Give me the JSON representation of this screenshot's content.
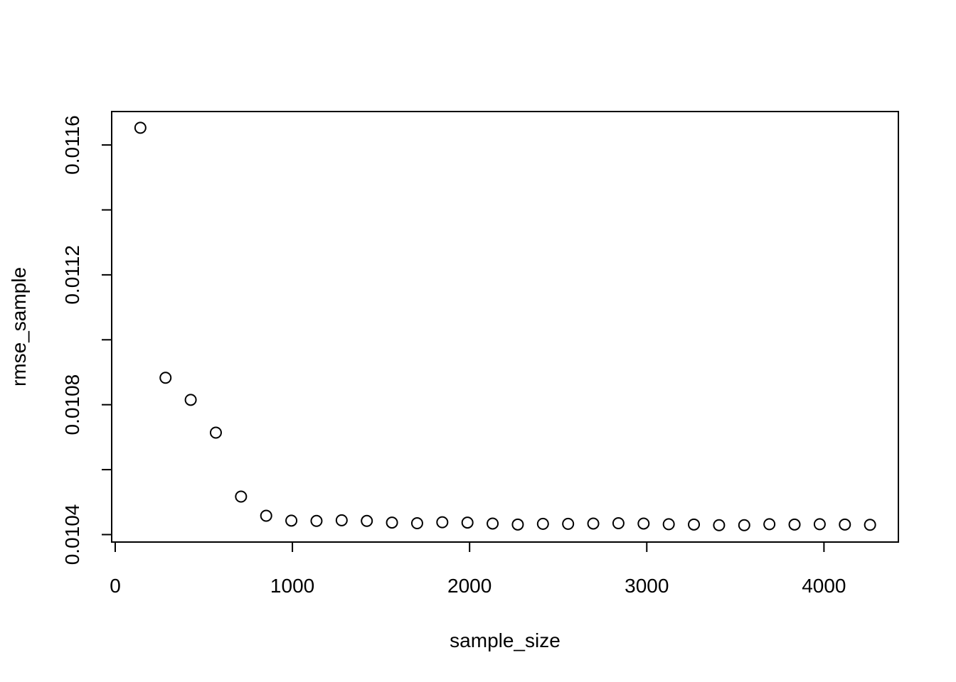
{
  "chart_data": {
    "type": "scatter",
    "title": "",
    "xlabel": "sample_size",
    "ylabel": "rmse_sample",
    "xlim": [
      -20,
      4420
    ],
    "ylim": [
      0.010377,
      0.011703
    ],
    "x_ticks": [
      0,
      1000,
      2000,
      3000,
      4000
    ],
    "x_tick_labels": [
      "0",
      "1000",
      "2000",
      "3000",
      "4000"
    ],
    "y_ticks": [
      0.0104,
      0.0106,
      0.0108,
      0.011,
      0.0112,
      0.0114,
      0.0116
    ],
    "y_tick_labels": [
      "0.0104",
      "",
      "0.0108",
      "",
      "0.0112",
      "",
      "0.0116"
    ],
    "grid": false,
    "legend": "none",
    "marker": "open-circle",
    "colors": {
      "points": "#000000",
      "axes": "#000000",
      "background": "#ffffff"
    },
    "series": [
      {
        "x": [
          142,
          284,
          426,
          568,
          710,
          852,
          994,
          1136,
          1278,
          1420,
          1562,
          1704,
          1846,
          1988,
          2130,
          2272,
          2414,
          2556,
          2698,
          2840,
          2982,
          3124,
          3266,
          3408,
          3550,
          3692,
          3834,
          3976,
          4118,
          4260
        ],
        "y": [
          0.011653,
          0.010883,
          0.010815,
          0.010714,
          0.010517,
          0.010458,
          0.010443,
          0.010442,
          0.010444,
          0.010442,
          0.010437,
          0.010435,
          0.010438,
          0.010437,
          0.010434,
          0.010431,
          0.010433,
          0.010433,
          0.010434,
          0.010435,
          0.010434,
          0.010432,
          0.010431,
          0.010429,
          0.010429,
          0.010432,
          0.010431,
          0.010432,
          0.010431,
          0.01043
        ]
      }
    ]
  }
}
